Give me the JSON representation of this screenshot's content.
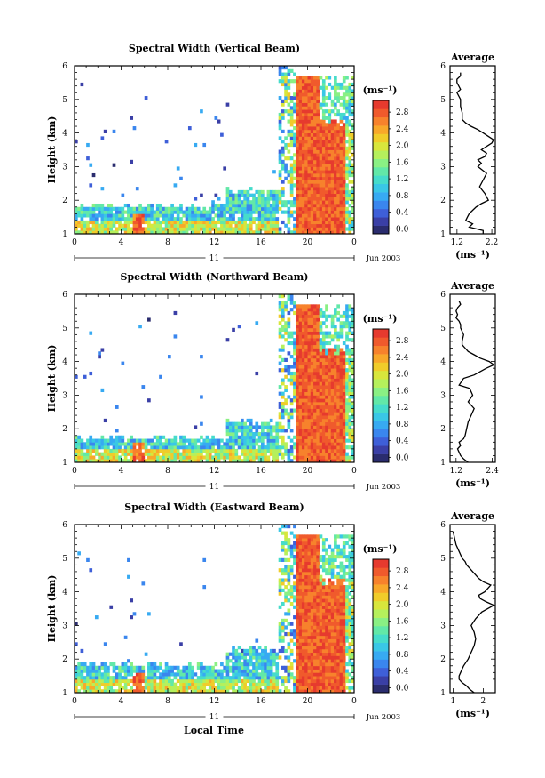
{
  "colorscale": {
    "colors": [
      "#2a2c6e",
      "#3a3fa6",
      "#3e5fd8",
      "#3a86ee",
      "#37aaf2",
      "#3ac7e6",
      "#46dccb",
      "#62e8a8",
      "#8af084",
      "#b5f05c",
      "#d8e63c",
      "#f0cc2a",
      "#f8a82a",
      "#f7822c",
      "#f05a2c",
      "#e63a2e"
    ],
    "ticks": [
      "0.0",
      "0.4",
      "0.8",
      "1.2",
      "1.6",
      "2.0",
      "2.4",
      "2.8"
    ]
  },
  "xticks": [
    "0",
    "4",
    "8",
    "12",
    "16",
    "20",
    "0"
  ],
  "date_label": "11",
  "date_right": "Jun 2003",
  "xlabel": "Local Time",
  "ylabel": "Height (km)",
  "yticks": [
    "1",
    "2",
    "3",
    "4",
    "5",
    "6"
  ],
  "unit": "(ms⁻¹)",
  "avg_title": "Average",
  "chart_data": [
    {
      "type": "heatmap",
      "title": "Spectral Width (Vertical Beam)",
      "xlabel": "",
      "ylabel": "Height (km)",
      "xlim": [
        0,
        24
      ],
      "ylim": [
        1,
        6
      ],
      "colorbar": {
        "label": "(ms⁻¹)",
        "range": [
          0.0,
          3.0
        ]
      },
      "features": {
        "low_layer_top_km": 1.8,
        "burst_start_h": 19,
        "burst_top_km": 5.7
      },
      "average_profile": {
        "xticks": [
          "1.2",
          "2.2"
        ],
        "xlim": [
          1.0,
          2.3
        ],
        "x": [
          1.95,
          1.95,
          1.55,
          1.65,
          1.45,
          1.5,
          1.55,
          1.65,
          1.75,
          1.9,
          2.1,
          2.0,
          1.85,
          1.95,
          2.05,
          1.8,
          1.9,
          1.8,
          2.0,
          2.05,
          1.9,
          2.05,
          2.2,
          2.25,
          2.1,
          1.95,
          1.8,
          1.6,
          1.45,
          1.35,
          1.35,
          1.3,
          1.3,
          1.25,
          1.2,
          1.3,
          1.25,
          1.2,
          1.2,
          1.3,
          1.3
        ],
        "y": [
          1.0,
          1.1,
          1.2,
          1.3,
          1.4,
          1.5,
          1.6,
          1.7,
          1.8,
          1.9,
          2.0,
          2.2,
          2.4,
          2.6,
          2.8,
          3.0,
          3.1,
          3.2,
          3.3,
          3.4,
          3.5,
          3.6,
          3.7,
          3.8,
          3.9,
          4.0,
          4.1,
          4.2,
          4.3,
          4.4,
          4.6,
          4.8,
          5.0,
          5.1,
          5.2,
          5.3,
          5.4,
          5.5,
          5.6,
          5.7,
          5.8
        ]
      }
    },
    {
      "type": "heatmap",
      "title": "Spectral Width (Northward Beam)",
      "xlabel": "",
      "ylabel": "Height (km)",
      "xlim": [
        0,
        24
      ],
      "ylim": [
        1,
        6
      ],
      "colorbar": {
        "label": "(ms⁻¹)",
        "range": [
          0.0,
          3.0
        ]
      },
      "features": {
        "low_layer_top_km": 1.7,
        "burst_start_h": 19,
        "burst_top_km": 5.7
      },
      "average_profile": {
        "xticks": [
          "1.2",
          "2.4"
        ],
        "xlim": [
          1.0,
          2.5
        ],
        "x": [
          1.6,
          1.45,
          1.35,
          1.3,
          1.25,
          1.35,
          1.3,
          1.45,
          1.5,
          1.55,
          1.6,
          1.7,
          1.8,
          1.6,
          1.75,
          1.65,
          1.3,
          1.45,
          1.8,
          2.0,
          2.2,
          2.45,
          2.3,
          2.0,
          1.8,
          1.6,
          1.5,
          1.4,
          1.4,
          1.45,
          1.35,
          1.35,
          1.3,
          1.2,
          1.25,
          1.2,
          1.25,
          1.35,
          1.3
        ],
        "y": [
          1.0,
          1.1,
          1.2,
          1.3,
          1.4,
          1.5,
          1.6,
          1.7,
          1.8,
          2.0,
          2.2,
          2.4,
          2.6,
          2.8,
          3.0,
          3.2,
          3.3,
          3.5,
          3.6,
          3.7,
          3.8,
          3.9,
          4.0,
          4.1,
          4.2,
          4.3,
          4.4,
          4.5,
          4.6,
          4.8,
          5.0,
          5.1,
          5.2,
          5.3,
          5.4,
          5.5,
          5.6,
          5.7,
          5.8
        ]
      }
    },
    {
      "type": "heatmap",
      "title": "Spectral Width (Eastward Beam)",
      "xlabel": "Local Time",
      "ylabel": "Height (km)",
      "xlim": [
        0,
        24
      ],
      "ylim": [
        1,
        6
      ],
      "colorbar": {
        "label": "(ms⁻¹)",
        "range": [
          0.0,
          3.0
        ]
      },
      "features": {
        "low_layer_top_km": 1.8,
        "burst_start_h": 19,
        "burst_top_km": 5.7
      },
      "average_profile": {
        "xticks": [
          "1",
          "2"
        ],
        "xlim": [
          0.9,
          2.4
        ],
        "x": [
          1.7,
          1.55,
          1.45,
          1.3,
          1.2,
          1.2,
          1.25,
          1.3,
          1.35,
          1.5,
          1.6,
          1.7,
          1.75,
          1.7,
          1.6,
          1.75,
          1.95,
          2.35,
          2.1,
          1.9,
          1.85,
          2.05,
          2.15,
          2.25,
          2.0,
          1.85,
          1.75,
          1.65,
          1.55,
          1.45,
          1.4,
          1.3,
          1.2,
          1.1,
          1.05,
          1.0
        ],
        "y": [
          1.0,
          1.1,
          1.2,
          1.3,
          1.4,
          1.5,
          1.6,
          1.7,
          1.8,
          2.0,
          2.2,
          2.4,
          2.6,
          2.8,
          3.0,
          3.2,
          3.4,
          3.6,
          3.7,
          3.8,
          3.9,
          4.0,
          4.1,
          4.2,
          4.3,
          4.4,
          4.5,
          4.6,
          4.7,
          4.8,
          4.9,
          5.0,
          5.2,
          5.4,
          5.6,
          5.8
        ]
      }
    }
  ]
}
